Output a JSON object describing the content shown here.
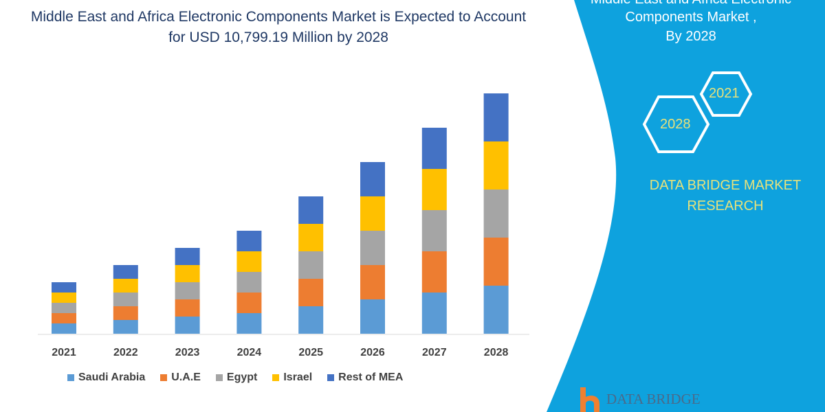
{
  "title": "Middle East and Africa Electronic Components Market is Expected to Account for USD 10,799.19 Million by 2028",
  "side_panel": {
    "line1": "Middle East and Africa Electronic",
    "line2": "Components Market ,",
    "line3": "By 2028",
    "hex_a": "2021",
    "hex_b": "2028",
    "brand_line1": "DATA BRIDGE MARKET",
    "brand_line2": "RESEARCH",
    "panel_color": "#0ea2de"
  },
  "logo": {
    "text": "DATA BRIDGE"
  },
  "chart_data": {
    "type": "bar",
    "stacked": true,
    "categories": [
      "2021",
      "2022",
      "2023",
      "2024",
      "2025",
      "2026",
      "2027",
      "2028"
    ],
    "series": [
      {
        "name": "Saudi Arabia",
        "color": "#5b9bd5",
        "values": [
          15,
          20,
          25,
          30,
          40,
          50,
          60,
          70
        ]
      },
      {
        "name": "U.A.E",
        "color": "#ed7d31",
        "values": [
          15,
          20,
          25,
          30,
          40,
          50,
          60,
          70
        ]
      },
      {
        "name": "Egypt",
        "color": "#a5a5a5",
        "values": [
          15,
          20,
          25,
          30,
          40,
          50,
          60,
          70
        ]
      },
      {
        "name": "Israel",
        "color": "#ffc000",
        "values": [
          15,
          20,
          25,
          30,
          40,
          50,
          60,
          70
        ]
      },
      {
        "name": "Rest of MEA",
        "color": "#4472c4",
        "values": [
          15,
          20,
          25,
          30,
          40,
          50,
          60,
          70
        ]
      }
    ],
    "y_axis_shown": false,
    "grid": false,
    "legend": "bottom"
  }
}
